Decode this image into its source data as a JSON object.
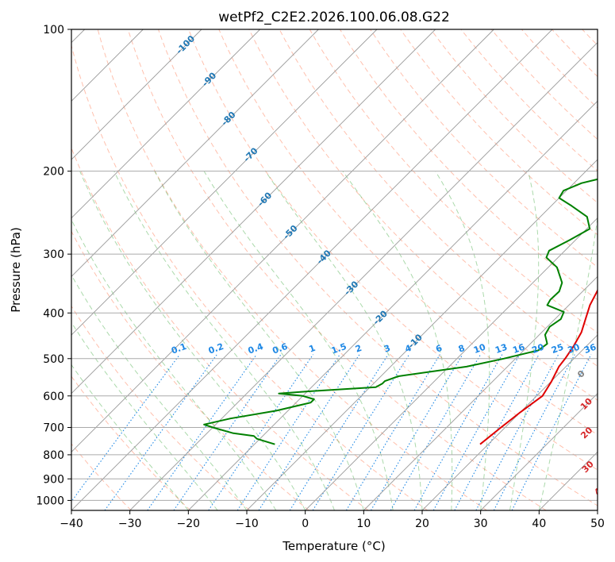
{
  "chart_data": {
    "type": "line",
    "title": "wetPf2_C2E2.2026.100.06.08.G22",
    "xlabel": "Temperature (°C)",
    "ylabel": "Pressure (hPa)",
    "xlim": [
      -40,
      50
    ],
    "ylim_hpa": [
      1050,
      100
    ],
    "xticks": [
      -40,
      -30,
      -20,
      -10,
      0,
      10,
      20,
      30,
      40,
      50
    ],
    "yticks": [
      100,
      200,
      300,
      400,
      500,
      600,
      700,
      800,
      900,
      1000
    ],
    "colors": {
      "temperature": "#e00000",
      "dewpoint": "#008000",
      "isotherm_label": "#1f77b4",
      "mixing_ratio": "#1e88e5",
      "dry_adiabat": "#ff8c69",
      "moist_adiabat": "#2ca02c",
      "wet_bulb_label": "#d62728",
      "zero_label": "#808080"
    },
    "series": [
      {
        "name": "Temperature",
        "points": [
          {
            "t": 18.6,
            "p": 760
          },
          {
            "t": 19.3,
            "p": 700
          },
          {
            "t": 20.0,
            "p": 650
          },
          {
            "t": 21.0,
            "p": 600
          },
          {
            "t": 20.1,
            "p": 560
          },
          {
            "t": 18.8,
            "p": 520
          },
          {
            "t": 18.5,
            "p": 500
          },
          {
            "t": 17.8,
            "p": 470
          },
          {
            "t": 16.8,
            "p": 440
          },
          {
            "t": 15.1,
            "p": 410
          },
          {
            "t": 13.6,
            "p": 385
          },
          {
            "t": 12.0,
            "p": 350
          },
          {
            "t": 11.3,
            "p": 320
          },
          {
            "t": 10.8,
            "p": 290
          },
          {
            "t": 9.2,
            "p": 260
          },
          {
            "t": 8.1,
            "p": 240
          },
          {
            "t": 7.6,
            "p": 220
          },
          {
            "t": 7.1,
            "p": 200
          },
          {
            "t": 6.2,
            "p": 180
          },
          {
            "t": 4.3,
            "p": 160
          },
          {
            "t": 2.8,
            "p": 145
          },
          {
            "t": 2.5,
            "p": 135
          },
          {
            "t": 3.7,
            "p": 125
          },
          {
            "t": 5.3,
            "p": 115
          },
          {
            "t": 7.7,
            "p": 100
          }
        ]
      },
      {
        "name": "Dewpoint",
        "points": [
          {
            "t": -16.5,
            "p": 760
          },
          {
            "t": -20.5,
            "p": 740
          },
          {
            "t": -21.5,
            "p": 730
          },
          {
            "t": -25.5,
            "p": 720
          },
          {
            "t": -30.0,
            "p": 700
          },
          {
            "t": -32.0,
            "p": 690
          },
          {
            "t": -28.5,
            "p": 670
          },
          {
            "t": -22.0,
            "p": 645
          },
          {
            "t": -17.5,
            "p": 620
          },
          {
            "t": -17.5,
            "p": 610
          },
          {
            "t": -20.0,
            "p": 600
          },
          {
            "t": -24.5,
            "p": 593
          },
          {
            "t": -20.0,
            "p": 587
          },
          {
            "t": -9.0,
            "p": 575
          },
          {
            "t": -8.5,
            "p": 565
          },
          {
            "t": -8.5,
            "p": 558
          },
          {
            "t": -7.0,
            "p": 545
          },
          {
            "t": 3.0,
            "p": 520
          },
          {
            "t": 8.0,
            "p": 500
          },
          {
            "t": 12.5,
            "p": 480
          },
          {
            "t": 12.9,
            "p": 465
          },
          {
            "t": 11.0,
            "p": 445
          },
          {
            "t": 10.4,
            "p": 428
          },
          {
            "t": 11.0,
            "p": 412
          },
          {
            "t": 10.3,
            "p": 398
          },
          {
            "t": 6.3,
            "p": 385
          },
          {
            "t": 5.9,
            "p": 375
          },
          {
            "t": 6.0,
            "p": 360
          },
          {
            "t": 5.0,
            "p": 345
          },
          {
            "t": 1.5,
            "p": 320
          },
          {
            "t": -2.0,
            "p": 305
          },
          {
            "t": -2.7,
            "p": 295
          },
          {
            "t": -1.0,
            "p": 280
          },
          {
            "t": 0.5,
            "p": 265
          },
          {
            "t": -2.0,
            "p": 250
          },
          {
            "t": -6.5,
            "p": 237
          },
          {
            "t": -10.0,
            "p": 228
          },
          {
            "t": -10.5,
            "p": 220
          },
          {
            "t": -8.7,
            "p": 212
          },
          {
            "t": -5.0,
            "p": 205
          },
          {
            "t": -5.0,
            "p": 198
          },
          {
            "t": -8.5,
            "p": 185
          },
          {
            "t": -12.0,
            "p": 175
          },
          {
            "t": -13.0,
            "p": 165
          },
          {
            "t": -12.0,
            "p": 152
          },
          {
            "t": -8.5,
            "p": 140
          },
          {
            "t": -5.5,
            "p": 130
          },
          {
            "t": -5.5,
            "p": 122
          },
          {
            "t": -3.0,
            "p": 115
          },
          {
            "t": 0.5,
            "p": 110
          },
          {
            "t": 0.5,
            "p": 104
          },
          {
            "t": -1.0,
            "p": 100
          }
        ]
      }
    ],
    "isotherm_labels": [
      {
        "text": "-100",
        "t": -100,
        "p": 108
      },
      {
        "text": "-90",
        "t": -90,
        "p": 128
      },
      {
        "text": "-80",
        "t": -80,
        "p": 155
      },
      {
        "text": "-70",
        "t": -70,
        "p": 185
      },
      {
        "text": "-60",
        "t": -60,
        "p": 230
      },
      {
        "text": "-50",
        "t": -50,
        "p": 270
      },
      {
        "text": "-40",
        "t": -40,
        "p": 305
      },
      {
        "text": "-30",
        "t": -30,
        "p": 355
      },
      {
        "text": "-20",
        "t": -20,
        "p": 410
      },
      {
        "text": "-10",
        "t": -10,
        "p": 460
      }
    ],
    "mixing_ratio_labels": [
      "0.1",
      "0.2",
      "0.4",
      "0.6",
      "1",
      "1.5",
      "2",
      "3",
      "4",
      "6",
      "8",
      "10",
      "13",
      "16",
      "20",
      "25",
      "30",
      "36"
    ],
    "mixing_ratio_label_pressure": 490,
    "wet_bulb_labels": [
      {
        "text": "0",
        "t": 24,
        "p": 540
      },
      {
        "text": "10",
        "t": 30,
        "p": 625
      },
      {
        "text": "20",
        "t": 35,
        "p": 720
      },
      {
        "text": "30",
        "t": 41,
        "p": 850
      },
      {
        "text": "40",
        "t": 47,
        "p": 950
      }
    ]
  }
}
